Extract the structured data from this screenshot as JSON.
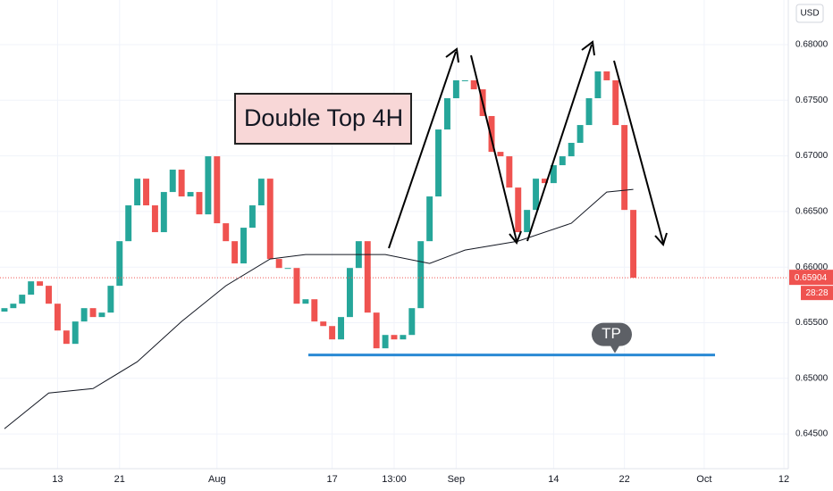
{
  "chart_data": {
    "type": "candlestick",
    "currency": "USD",
    "annotation": "Double Top 4H",
    "tp_label": "TP",
    "tp_level": 0.6521,
    "countdown": "28:28",
    "last_price": {
      "value": 0.65904,
      "label": "0.65904"
    },
    "up_color": "#26a69a",
    "down_color": "#ef5350",
    "grid": true,
    "xlim": [
      -0.5,
      88.5
    ],
    "ylim": [
      0.64228,
      0.68401
    ],
    "xticks": [
      {
        "value": 6,
        "label": "13"
      },
      {
        "value": 13,
        "label": "21"
      },
      {
        "value": 24,
        "label": "Aug"
      },
      {
        "value": 37,
        "label": "17"
      },
      {
        "value": 44,
        "label": "13:00"
      },
      {
        "value": 51,
        "label": "Sep"
      },
      {
        "value": 62,
        "label": "14"
      },
      {
        "value": 70,
        "label": "22"
      },
      {
        "value": 79,
        "label": "Oct"
      },
      {
        "value": 88,
        "label": "12"
      }
    ],
    "yticks": [
      {
        "value": 0.645,
        "label": "0.64500"
      },
      {
        "value": 0.65,
        "label": "0.65000"
      },
      {
        "value": 0.655,
        "label": "0.65500"
      },
      {
        "value": 0.66,
        "label": "0.66000"
      },
      {
        "value": 0.665,
        "label": "0.66500"
      },
      {
        "value": 0.67,
        "label": "0.67000"
      },
      {
        "value": 0.675,
        "label": "0.67500"
      },
      {
        "value": 0.68,
        "label": "0.68000"
      }
    ],
    "open": [
      0.656,
      0.65631,
      0.65671,
      0.65752,
      0.65872,
      0.65832,
      0.65671,
      0.6543,
      0.6531,
      0.65511,
      0.65631,
      0.65551,
      0.65591,
      0.65832,
      0.66233,
      0.66555,
      0.66795,
      0.66555,
      0.66314,
      0.66675,
      0.66876,
      0.66635,
      0.66675,
      0.66474,
      0.66996,
      0.66394,
      0.66233,
      0.66033,
      0.66354,
      0.66555,
      0.66795,
      0.66073,
      0.65992,
      0.65992,
      0.65671,
      0.65711,
      0.65511,
      0.6547,
      0.6535,
      0.65551,
      0.65992,
      0.66233,
      0.65591,
      0.6527,
      0.6539,
      0.6535,
      0.6539,
      0.65631,
      0.66233,
      0.66635,
      0.67237,
      0.67518,
      0.67679,
      0.67679,
      0.67598,
      0.67358,
      0.67036,
      0.66996,
      0.66715,
      0.66314,
      0.66514,
      0.66795,
      0.66755,
      0.66916,
      0.66996,
      0.67117,
      0.67277,
      0.67518,
      0.67759,
      0.67679,
      0.67277,
      0.66514
    ],
    "close": [
      0.65631,
      0.65671,
      0.65752,
      0.65872,
      0.65832,
      0.65671,
      0.6543,
      0.6531,
      0.65511,
      0.65631,
      0.65551,
      0.65591,
      0.65832,
      0.66233,
      0.66555,
      0.66795,
      0.66555,
      0.66314,
      0.66675,
      0.66876,
      0.66635,
      0.66675,
      0.66474,
      0.66996,
      0.66394,
      0.66233,
      0.66033,
      0.66354,
      0.66555,
      0.66795,
      0.66073,
      0.65992,
      0.65992,
      0.65671,
      0.65711,
      0.65511,
      0.6547,
      0.6535,
      0.65551,
      0.65992,
      0.66233,
      0.65591,
      0.6527,
      0.6539,
      0.6535,
      0.6539,
      0.65631,
      0.66233,
      0.66635,
      0.67237,
      0.67518,
      0.67679,
      0.67679,
      0.67598,
      0.67358,
      0.67036,
      0.66996,
      0.66715,
      0.66314,
      0.66514,
      0.66795,
      0.66755,
      0.66916,
      0.66996,
      0.67117,
      0.67277,
      0.67518,
      0.67759,
      0.67679,
      0.67277,
      0.66514,
      0.65904
    ],
    "ma": {
      "color": "#131722",
      "x": [
        0,
        5,
        10,
        15,
        20,
        25,
        30,
        34,
        43,
        48,
        52,
        58,
        64,
        68,
        71
      ],
      "values": [
        0.64547,
        0.64868,
        0.64908,
        0.65149,
        0.65511,
        0.65832,
        0.66073,
        0.66113,
        0.66113,
        0.66033,
        0.66153,
        0.66233,
        0.66394,
        0.66675,
        0.66699
      ]
    }
  }
}
